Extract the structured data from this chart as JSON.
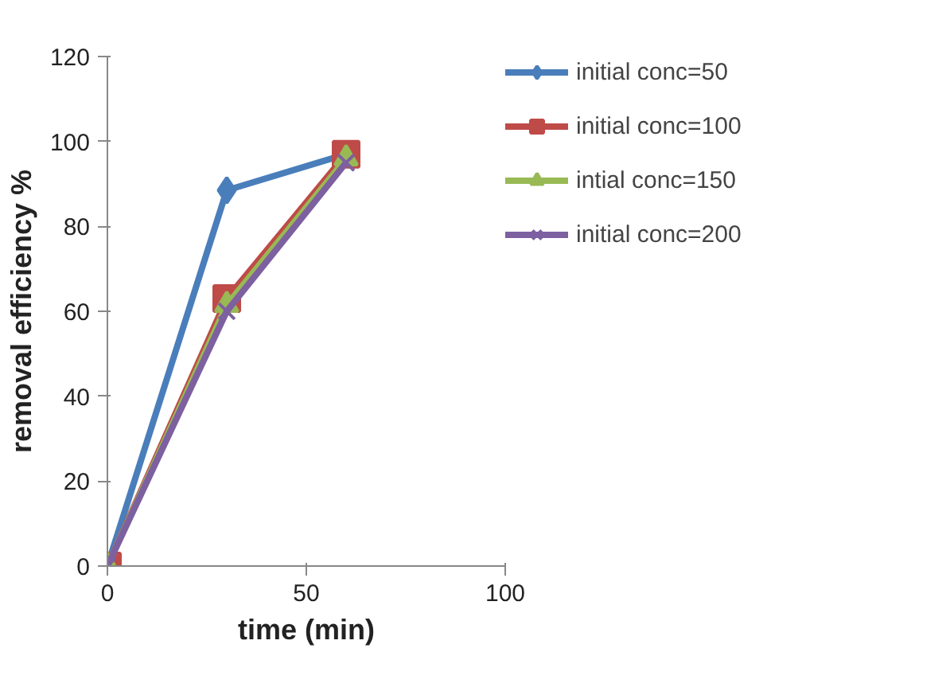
{
  "chart_data": {
    "type": "line",
    "xlabel": "time (min)",
    "ylabel": "removal efficiency %",
    "x": [
      0,
      30,
      60
    ],
    "series": [
      {
        "name": "initial conc=50",
        "color": "#4a7ebb",
        "marker": "diamond",
        "values": [
          0,
          88.5,
          97
        ]
      },
      {
        "name": "initial conc=100",
        "color": "#be4b48",
        "marker": "square",
        "values": [
          0,
          63,
          97
        ]
      },
      {
        "name": "intial conc=150",
        "color": "#98b954",
        "marker": "triangle",
        "values": [
          0,
          61.5,
          96
        ]
      },
      {
        "name": "initial conc=200",
        "color": "#7d60a0",
        "marker": "cross",
        "values": [
          0,
          60,
          95
        ]
      }
    ],
    "xlim": [
      0,
      100
    ],
    "xticks": [
      0,
      50,
      100
    ],
    "ylim": [
      0,
      120
    ],
    "yticks": [
      0,
      20,
      40,
      60,
      80,
      100,
      120
    ],
    "grid": false,
    "legend": "right",
    "line_style": "solid"
  }
}
